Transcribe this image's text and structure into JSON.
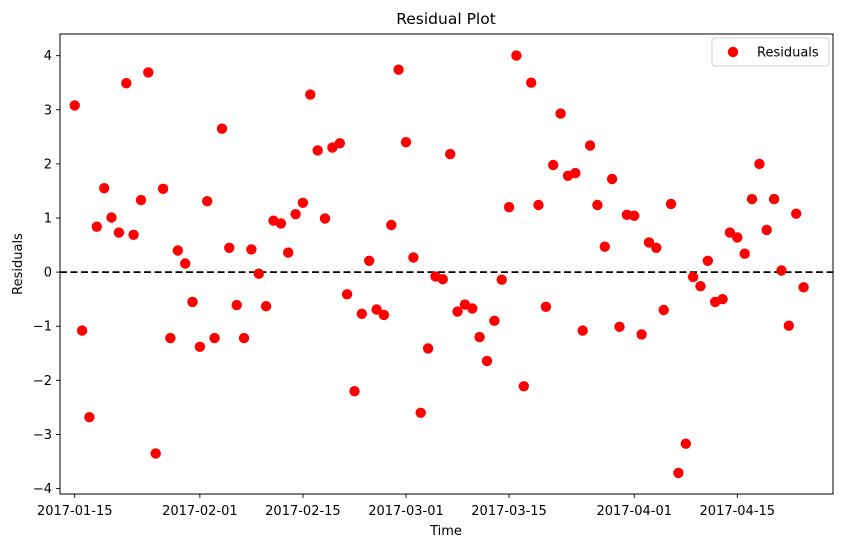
{
  "chart_data": {
    "type": "scatter",
    "title": "Residual Plot",
    "xlabel": "Time",
    "ylabel": "Residuals",
    "x_tick_labels": [
      "2017-01-15",
      "2017-02-01",
      "2017-02-15",
      "2017-03-01",
      "2017-03-15",
      "2017-04-01",
      "2017-04-15"
    ],
    "y_tick_labels": [
      "−4",
      "−3",
      "−2",
      "−1",
      "0",
      "1",
      "2",
      "3",
      "4"
    ],
    "ylim": [
      -4.1,
      4.4
    ],
    "xlim": [
      "2017-01-13",
      "2017-04-28"
    ],
    "reference_line": {
      "y": 0,
      "style": "dashed",
      "color": "#000000"
    },
    "legend": {
      "position": "upper-right",
      "entries": [
        "Residuals"
      ]
    },
    "marker_color": "#ff0000",
    "series": [
      {
        "name": "Residuals",
        "x": [
          "2017-01-15",
          "2017-01-16",
          "2017-01-17",
          "2017-01-18",
          "2017-01-19",
          "2017-01-20",
          "2017-01-21",
          "2017-01-22",
          "2017-01-23",
          "2017-01-24",
          "2017-01-25",
          "2017-01-26",
          "2017-01-27",
          "2017-01-28",
          "2017-01-29",
          "2017-01-30",
          "2017-01-31",
          "2017-02-01",
          "2017-02-02",
          "2017-02-03",
          "2017-02-04",
          "2017-02-05",
          "2017-02-06",
          "2017-02-07",
          "2017-02-08",
          "2017-02-09",
          "2017-02-10",
          "2017-02-11",
          "2017-02-12",
          "2017-02-13",
          "2017-02-14",
          "2017-02-15",
          "2017-02-16",
          "2017-02-17",
          "2017-02-18",
          "2017-02-19",
          "2017-02-20",
          "2017-02-21",
          "2017-02-22",
          "2017-02-23",
          "2017-02-24",
          "2017-02-25",
          "2017-02-26",
          "2017-02-27",
          "2017-02-28",
          "2017-03-01",
          "2017-03-02",
          "2017-03-03",
          "2017-03-04",
          "2017-03-05",
          "2017-03-06",
          "2017-03-07",
          "2017-03-08",
          "2017-03-09",
          "2017-03-10",
          "2017-03-11",
          "2017-03-12",
          "2017-03-13",
          "2017-03-14",
          "2017-03-15",
          "2017-03-16",
          "2017-03-17",
          "2017-03-18",
          "2017-03-19",
          "2017-03-20",
          "2017-03-21",
          "2017-03-22",
          "2017-03-23",
          "2017-03-24",
          "2017-03-25",
          "2017-03-26",
          "2017-03-27",
          "2017-03-28",
          "2017-03-29",
          "2017-03-30",
          "2017-03-31",
          "2017-04-01",
          "2017-04-02",
          "2017-04-03",
          "2017-04-04",
          "2017-04-05",
          "2017-04-06",
          "2017-04-07",
          "2017-04-08",
          "2017-04-09",
          "2017-04-10",
          "2017-04-11",
          "2017-04-12",
          "2017-04-13",
          "2017-04-14",
          "2017-04-15",
          "2017-04-16",
          "2017-04-17",
          "2017-04-18",
          "2017-04-19",
          "2017-04-20",
          "2017-04-21",
          "2017-04-22",
          "2017-04-23",
          "2017-04-24"
        ],
        "y": [
          3.08,
          -1.08,
          -2.68,
          0.84,
          1.55,
          1.01,
          0.73,
          3.49,
          0.69,
          1.33,
          3.69,
          -3.35,
          1.54,
          -1.22,
          0.4,
          0.16,
          -0.55,
          -1.38,
          1.31,
          -1.22,
          2.65,
          0.45,
          -0.61,
          -1.22,
          0.42,
          -0.03,
          -0.63,
          0.95,
          0.9,
          0.36,
          1.07,
          1.28,
          3.28,
          2.25,
          0.99,
          2.3,
          2.38,
          -0.41,
          -2.2,
          -0.77,
          0.21,
          -0.69,
          -0.79,
          0.87,
          3.74,
          2.4,
          0.27,
          -2.6,
          -1.41,
          -0.08,
          -0.13,
          2.18,
          -0.73,
          -0.6,
          -0.67,
          -1.2,
          -1.64,
          -0.9,
          -0.14,
          1.2,
          4.0,
          -2.11,
          3.5,
          1.24,
          -0.64,
          1.98,
          2.93,
          1.78,
          1.83,
          -1.08,
          2.34,
          1.24,
          0.47,
          1.72,
          -1.01,
          1.06,
          1.04,
          -1.15,
          0.55,
          0.45,
          -0.7,
          1.26,
          -3.71,
          -3.17,
          -0.09,
          -0.26,
          0.21,
          -0.55,
          -0.5,
          0.73,
          0.64,
          0.34,
          1.35,
          2.0,
          0.78,
          1.35,
          0.03,
          -0.99,
          1.08,
          -0.28
        ]
      }
    ]
  }
}
